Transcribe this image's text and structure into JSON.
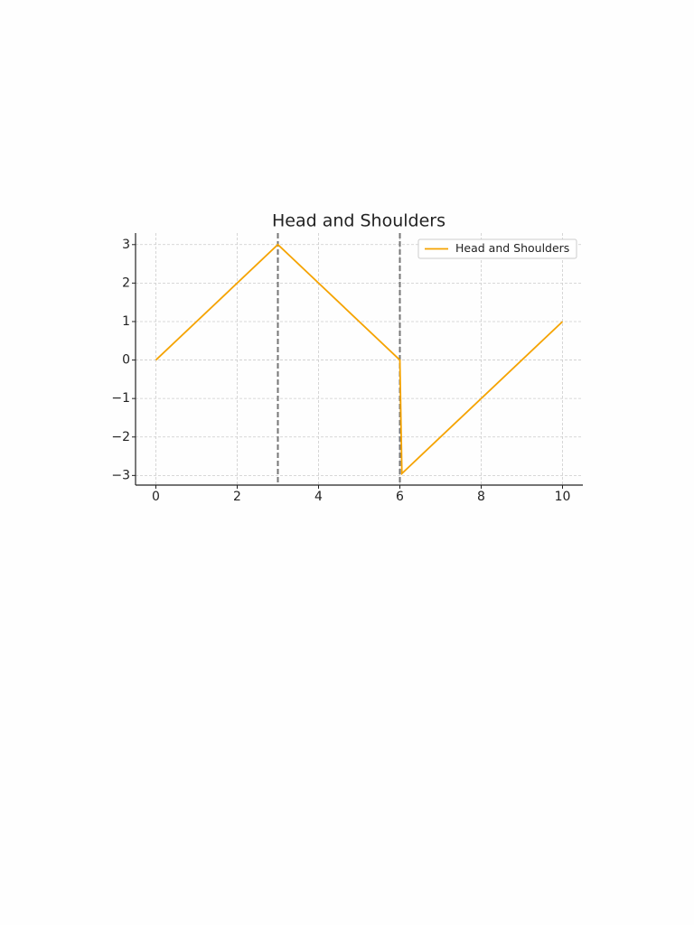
{
  "chart_data": {
    "type": "line",
    "title": "Head and Shoulders",
    "x": [
      0,
      3,
      6,
      6.05,
      10
    ],
    "series": [
      {
        "name": "Head and Shoulders",
        "color": "#f5a300",
        "values": [
          0,
          3,
          0,
          -2.95,
          1
        ]
      }
    ],
    "vlines": [
      3,
      6
    ],
    "vline_color": "#777777",
    "xlim": [
      -0.5,
      10.5
    ],
    "ylim": [
      -3.25,
      3.3
    ],
    "xticks": [
      0,
      2,
      4,
      6,
      8,
      10
    ],
    "yticks": [
      {
        "value": -3,
        "label": "−3"
      },
      {
        "value": -2,
        "label": "−2"
      },
      {
        "value": -1,
        "label": "−1"
      },
      0,
      1,
      2,
      3
    ],
    "grid": true,
    "legend": "upper right"
  }
}
